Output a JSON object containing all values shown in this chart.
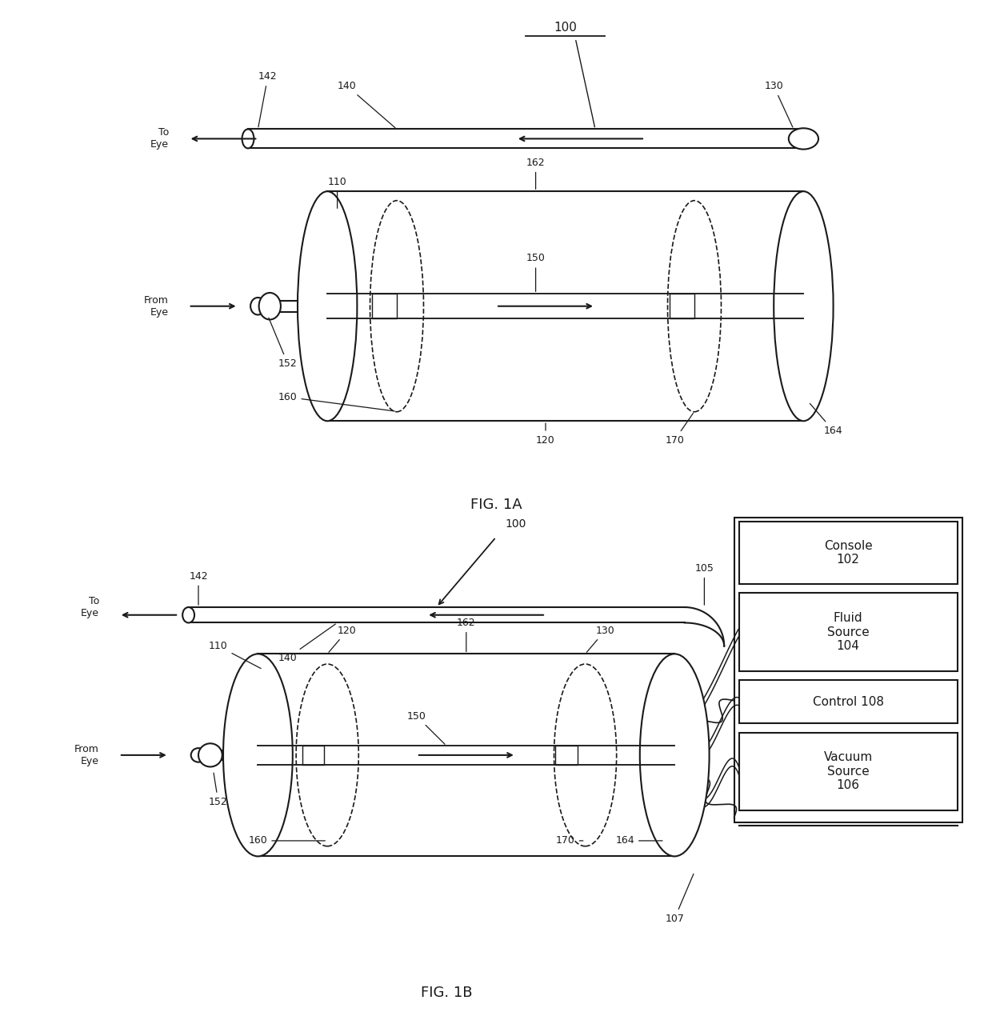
{
  "fig1a_label": "FIG. 1A",
  "fig1b_label": "FIG. 1B",
  "bg_color": "#ffffff",
  "line_color": "#1a1a1a",
  "labels": {
    "console_text": "Console\n102",
    "fluid_text": "Fluid\nSource\n104",
    "control_text": "Control 108",
    "vacuum_text": "Vacuum\nSource\n106"
  }
}
